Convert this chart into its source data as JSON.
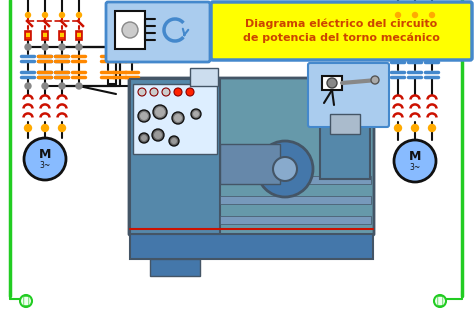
{
  "title_line1": "Diagrama eléctrico del circuito",
  "title_line2": "de potencia del torno mecánico",
  "title_bg": "#FFFF00",
  "title_border": "#4488CC",
  "title_fg": "#CC4400",
  "bg": "#FFFFFF",
  "green": "#22CC22",
  "black": "#111111",
  "red": "#CC1100",
  "orange": "#FF8800",
  "blue": "#4488CC",
  "light_blue": "#AACCEE",
  "motor_fill": "#88BBFF",
  "lathe_fill": "#6699AA",
  "lathe_dark": "#445566",
  "lathe_panel": "#DDEEFF",
  "yellow": "#FFAA00",
  "gray": "#888888",
  "wire_bg": "#FFFFFF"
}
